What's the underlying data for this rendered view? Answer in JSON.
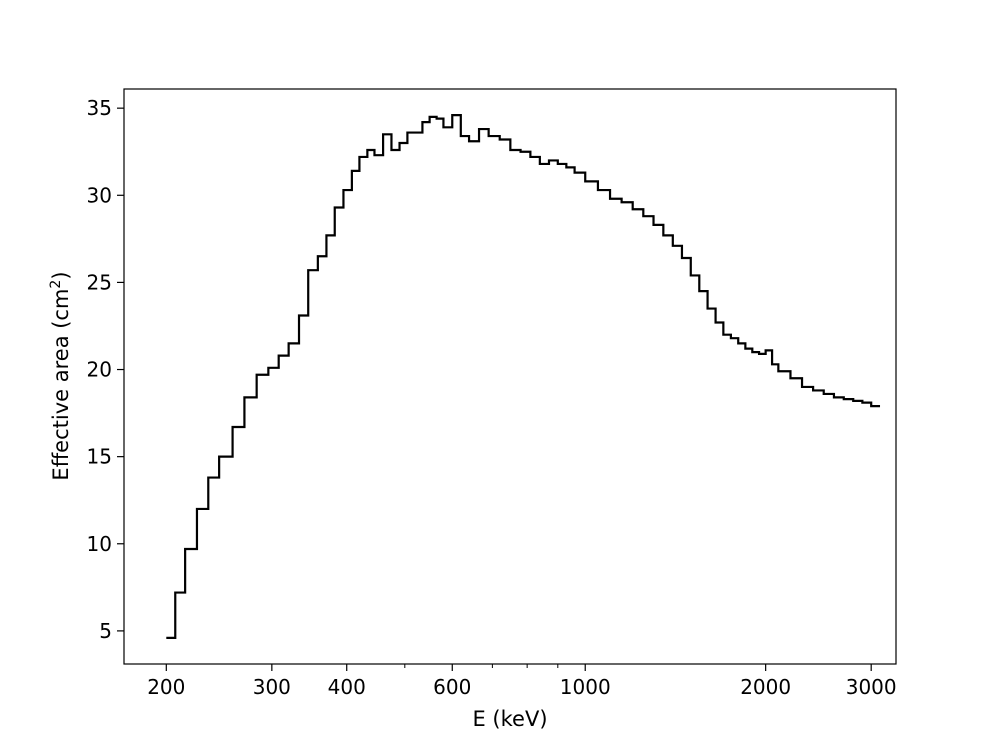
{
  "chart_data": {
    "type": "line",
    "style": "step",
    "line_color": "#000000",
    "title": "",
    "xlabel": "E (keV)",
    "ylabel": "Effective area (cm",
    "ylabel_sup": "2",
    "ylabel_close": ")",
    "xscale": "log",
    "xlim": [
      170,
      3300
    ],
    "ylim": [
      3.1,
      36.1
    ],
    "xticks": [
      200,
      300,
      400,
      600,
      1000,
      2000,
      3000
    ],
    "xtick_labels": [
      "200",
      "300",
      "400",
      "600",
      "1000",
      "2000",
      "3000"
    ],
    "yticks": [
      5,
      10,
      15,
      20,
      25,
      30,
      35
    ],
    "ytick_labels": [
      "5",
      "10",
      "15",
      "20",
      "25",
      "30",
      "35"
    ],
    "grid": false,
    "series": [
      {
        "x": [
          200,
          207,
          215,
          225,
          235,
          245,
          258,
          270,
          283,
          296,
          308,
          320,
          333,
          345,
          358,
          370,
          382,
          395,
          408,
          420,
          433,
          445,
          460,
          475,
          490,
          505,
          520,
          535,
          550,
          565,
          580,
          600,
          620,
          640,
          665,
          690,
          720,
          750,
          780,
          810,
          840,
          870,
          900,
          930,
          960,
          1000,
          1050,
          1100,
          1150,
          1200,
          1250,
          1300,
          1350,
          1400,
          1450,
          1500,
          1550,
          1600,
          1650,
          1700,
          1750,
          1800,
          1850,
          1900,
          1950,
          2000,
          2050,
          2100,
          2200,
          2300,
          2400,
          2500,
          2600,
          2700,
          2800,
          2900,
          3000
        ],
        "y": [
          4.6,
          7.2,
          9.7,
          12.0,
          13.8,
          15.0,
          16.7,
          18.4,
          19.7,
          20.1,
          20.8,
          21.5,
          23.1,
          25.7,
          26.5,
          27.7,
          29.3,
          30.3,
          31.4,
          32.2,
          32.6,
          32.3,
          33.5,
          32.6,
          33.0,
          33.6,
          33.6,
          34.2,
          34.5,
          34.4,
          33.9,
          34.6,
          33.4,
          33.1,
          33.8,
          33.4,
          33.2,
          32.6,
          32.5,
          32.2,
          31.8,
          32.0,
          31.8,
          31.6,
          31.3,
          30.8,
          30.3,
          29.8,
          29.6,
          29.2,
          28.8,
          28.3,
          27.7,
          27.1,
          26.4,
          25.4,
          24.5,
          23.5,
          22.7,
          22.0,
          21.8,
          21.5,
          21.2,
          21.0,
          20.9,
          21.1,
          20.3,
          19.9,
          19.5,
          19.0,
          18.8,
          18.6,
          18.4,
          18.3,
          18.2,
          18.1,
          17.9
        ]
      }
    ]
  }
}
